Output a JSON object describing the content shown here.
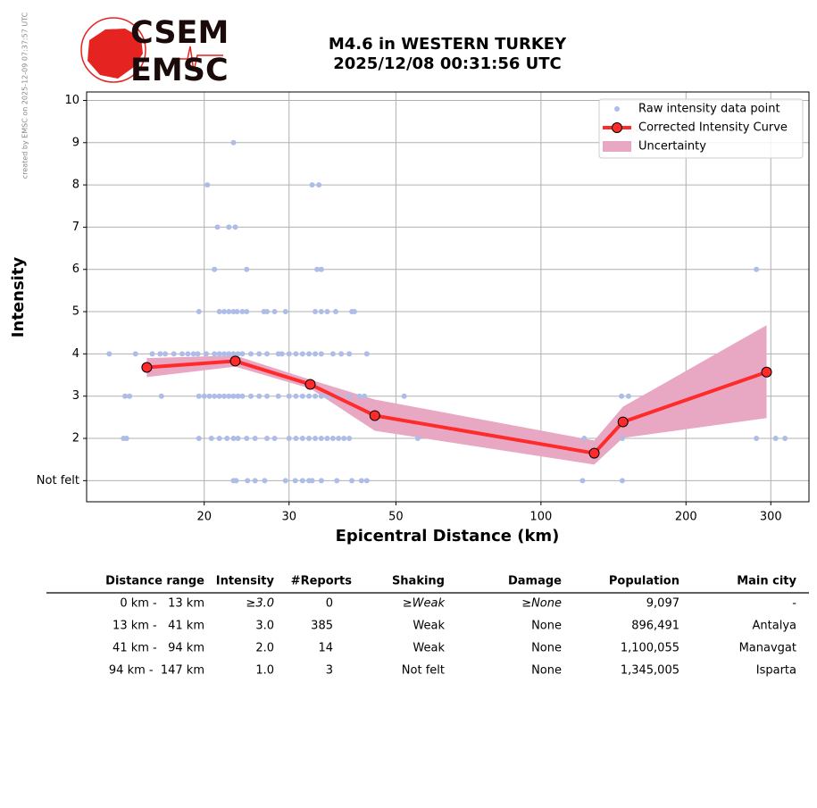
{
  "credit": "created by EMSC on 2025-12-09 07:37:57 UTC",
  "logo": [
    "CSEM",
    "EMSC"
  ],
  "chart_data": {
    "type": "line",
    "title": [
      "M4.6 in WESTERN TURKEY",
      "2025/12/08 00:31:56 UTC"
    ],
    "xlabel": "Epicentral Distance (km)",
    "ylabel": "Intensity",
    "xscale": "log",
    "xlim": [
      11.4,
      360
    ],
    "ylim": [
      0.5,
      10.2
    ],
    "xticks": [
      20,
      30,
      50,
      100,
      200,
      300
    ],
    "yticks": [
      {
        "value": 1,
        "label": "Not felt"
      },
      2,
      3,
      4,
      5,
      6,
      7,
      8,
      9,
      10
    ],
    "grid": true,
    "legend": "upper right",
    "scatter": {
      "name": "Raw intensity data point",
      "color": "#aebde8",
      "x": [
        23,
        20.3,
        33.5,
        34.6,
        21.3,
        22.5,
        23.2,
        21,
        24.5,
        34.3,
        35,
        280,
        19.5,
        21.5,
        22,
        22.5,
        23,
        23.4,
        24,
        24.5,
        26.6,
        27,
        28,
        29.5,
        34,
        35,
        36,
        37.5,
        40.5,
        41,
        12.7,
        14.4,
        15.6,
        16.2,
        16.6,
        17.3,
        18,
        18.5,
        19,
        19.4,
        20.2,
        21,
        21.5,
        22,
        22.5,
        23,
        23.5,
        24,
        25,
        26,
        27,
        28.5,
        29,
        30,
        31,
        32,
        33,
        34,
        35,
        37,
        38.5,
        40,
        43.5,
        13.7,
        14,
        16.3,
        19.5,
        20,
        20.5,
        21,
        21.5,
        22,
        22.5,
        23,
        23.5,
        24,
        25,
        26,
        27,
        28.5,
        30,
        31,
        32,
        33,
        34,
        35,
        36,
        37,
        38,
        40,
        42,
        43,
        52,
        147,
        152,
        13.6,
        13.8,
        19.5,
        20.7,
        21.5,
        22.3,
        23,
        23.5,
        24.5,
        25.5,
        27,
        28,
        30,
        31,
        32,
        33,
        34,
        35,
        36,
        37,
        38,
        39,
        40,
        55.5,
        123,
        147.5,
        280,
        307,
        321,
        23,
        23.3,
        24.6,
        25.5,
        26.7,
        29.5,
        30.9,
        32,
        33,
        33.5,
        35,
        37.7,
        40.5,
        42.4,
        43.5,
        122,
        147.5
      ],
      "y": [
        9,
        8,
        8,
        8,
        7,
        7,
        7,
        6,
        6,
        6,
        6,
        6,
        5,
        5,
        5,
        5,
        5,
        5,
        5,
        5,
        5,
        5,
        5,
        5,
        5,
        5,
        5,
        5,
        5,
        5,
        4,
        4,
        4,
        4,
        4,
        4,
        4,
        4,
        4,
        4,
        4,
        4,
        4,
        4,
        4,
        4,
        4,
        4,
        4,
        4,
        4,
        4,
        4,
        4,
        4,
        4,
        4,
        4,
        4,
        4,
        4,
        4,
        4,
        3,
        3,
        3,
        3,
        3,
        3,
        3,
        3,
        3,
        3,
        3,
        3,
        3,
        3,
        3,
        3,
        3,
        3,
        3,
        3,
        3,
        3,
        3,
        3,
        3,
        3,
        3,
        3,
        3,
        3,
        3,
        3,
        2,
        2,
        2,
        2,
        2,
        2,
        2,
        2,
        2,
        2,
        2,
        2,
        2,
        2,
        2,
        2,
        2,
        2,
        2,
        2,
        2,
        2,
        2,
        2,
        2,
        2,
        2,
        2,
        2,
        1,
        1,
        1,
        1,
        1,
        1,
        1,
        1,
        1,
        1,
        1,
        1,
        1,
        1,
        1,
        1,
        1
      ]
    },
    "series": [
      {
        "name": "Corrected Intensity Curve",
        "color": "#ff2a2a",
        "x": [
          15.2,
          23.2,
          33.2,
          45.2,
          129,
          148,
          294
        ],
        "values": [
          3.68,
          3.83,
          3.28,
          2.54,
          1.65,
          2.39,
          3.57
        ]
      }
    ],
    "band": {
      "name": "Uncertainty",
      "color": "#e8a8c4",
      "x": [
        15.2,
        23.2,
        33.2,
        45.2,
        129,
        148,
        294
      ],
      "upper": [
        3.9,
        3.96,
        3.39,
        2.92,
        1.95,
        2.75,
        4.68
      ],
      "lower": [
        3.45,
        3.7,
        3.18,
        2.18,
        1.38,
        2.01,
        2.48
      ]
    }
  },
  "table": {
    "header": [
      "Distance range",
      "Intensity",
      "#Reports",
      "Shaking",
      "Damage",
      "Population",
      "Main city"
    ],
    "rows": [
      [
        "0 km -   13 km",
        "≥3.0",
        "0",
        "≥Weak",
        "≥None",
        "9,097",
        "-"
      ],
      [
        "13 km -   41 km",
        "3.0",
        "385",
        "Weak",
        "None",
        "896,491",
        "Antalya"
      ],
      [
        "41 km -   94 km",
        "2.0",
        "14",
        "Weak",
        "None",
        "1,100,055",
        "Manavgat"
      ],
      [
        "94 km -  147 km",
        "1.0",
        "3",
        "Not felt",
        "None",
        "1,345,005",
        "Isparta"
      ]
    ]
  }
}
